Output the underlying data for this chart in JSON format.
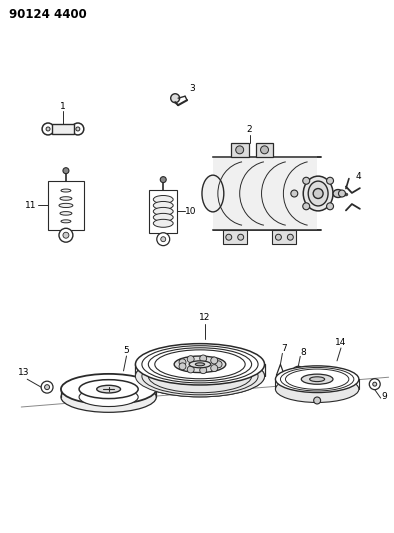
{
  "title": "90124 4400",
  "bg": "#ffffff",
  "lc": "#2a2a2a",
  "fig_w": 3.94,
  "fig_h": 5.33,
  "dpi": 100
}
